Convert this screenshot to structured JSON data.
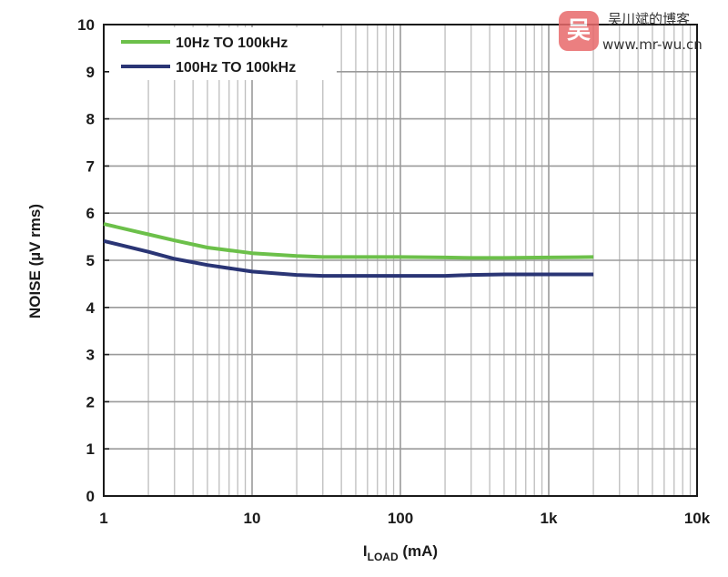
{
  "chart_data": {
    "type": "line",
    "title": "",
    "xlabel_main": "I",
    "xlabel_sub": "LOAD",
    "xlabel_unit": " (mA)",
    "ylabel": "NOISE (µV rms)",
    "xscale": "log",
    "xlim": [
      1,
      10000
    ],
    "ylim": [
      0,
      10
    ],
    "grid": true,
    "legend_position": "top-left",
    "x_tick_labels": [
      "1",
      "10",
      "100",
      "1k",
      "10k"
    ],
    "x_tick_values": [
      1,
      10,
      100,
      1000,
      10000
    ],
    "y_tick_labels": [
      "0",
      "1",
      "2",
      "3",
      "4",
      "5",
      "6",
      "7",
      "8",
      "9",
      "10"
    ],
    "y_tick_values": [
      0,
      1,
      2,
      3,
      4,
      5,
      6,
      7,
      8,
      9,
      10
    ],
    "series": [
      {
        "name": "10Hz TO 100kHz",
        "color": "#6cc04a",
        "x": [
          1,
          2,
          3,
          5,
          10,
          20,
          30,
          50,
          100,
          200,
          300,
          500,
          1000,
          2000
        ],
        "y": [
          5.77,
          5.55,
          5.42,
          5.27,
          5.15,
          5.09,
          5.07,
          5.07,
          5.07,
          5.06,
          5.05,
          5.05,
          5.06,
          5.07
        ]
      },
      {
        "name": "100Hz TO 100kHz",
        "color": "#2a3575",
        "x": [
          1,
          2,
          3,
          5,
          10,
          20,
          30,
          50,
          100,
          200,
          300,
          500,
          1000,
          2000
        ],
        "y": [
          5.41,
          5.18,
          5.03,
          4.9,
          4.76,
          4.69,
          4.67,
          4.67,
          4.67,
          4.67,
          4.69,
          4.7,
          4.7,
          4.7
        ]
      }
    ]
  },
  "watermark": {
    "logo_char": "吴",
    "name": "吴川斌的博客",
    "url": "www.mr-wu.cn"
  }
}
